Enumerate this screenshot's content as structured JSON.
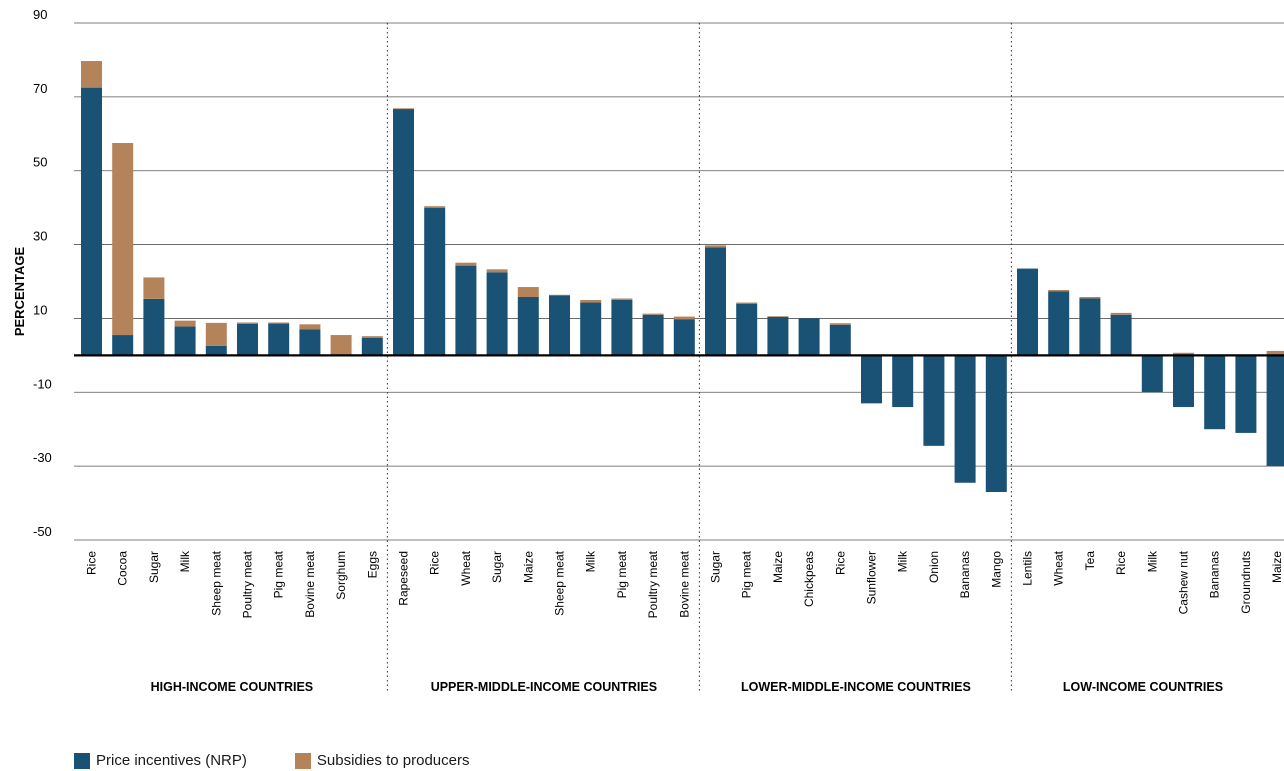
{
  "chart_data": {
    "type": "bar",
    "stacked": true,
    "ylabel": "PERCENTAGE",
    "ylim": [
      -50,
      90
    ],
    "yticks": [
      90,
      70,
      50,
      30,
      10,
      -10,
      -30,
      -50
    ],
    "colors": {
      "nrp": "#1a5276",
      "subsidy": "#b5835a"
    },
    "legend": [
      {
        "key": "nrp",
        "label": "Price incentives (NRP)"
      },
      {
        "key": "subsidy",
        "label": "Subsidies to producers"
      }
    ],
    "legend_position": "bottom-left",
    "groups": [
      {
        "label": "HIGH-INCOME COUNTRIES",
        "categories": [
          "Rice",
          "Cocoa",
          "Sugar",
          "Milk",
          "Sheep meat",
          "Poultry meat",
          "Pig meat",
          "Bovine meat",
          "Sorghum",
          "Eggs"
        ],
        "nrp": [
          72.5,
          5.5,
          15.3,
          7.8,
          2.6,
          8.5,
          8.6,
          7.0,
          0.0,
          4.7
        ],
        "subsidy": [
          7.2,
          52.0,
          5.8,
          1.6,
          6.2,
          0.4,
          0.3,
          1.4,
          5.5,
          0.5
        ]
      },
      {
        "label": "UPPER-MIDDLE-INCOME COUNTRIES",
        "categories": [
          "Rapeseed",
          "Rice",
          "Wheat",
          "Sugar",
          "Maize",
          "Sheep meat",
          "Milk",
          "Pig meat",
          "Poultry meat",
          "Bovine meat"
        ],
        "nrp": [
          66.7,
          39.9,
          24.3,
          22.5,
          15.8,
          16.2,
          14.3,
          15.0,
          11.0,
          9.8
        ],
        "subsidy": [
          0.2,
          0.5,
          0.8,
          0.8,
          2.7,
          0.2,
          0.7,
          0.4,
          0.3,
          0.7
        ]
      },
      {
        "label": "LOWER-MIDDLE-INCOME COUNTRIES",
        "categories": [
          "Sugar",
          "Pig meat",
          "Maize",
          "Chickpeas",
          "Rice",
          "Sunflower",
          "Milk",
          "Onion",
          "Bananas",
          "Mango"
        ],
        "nrp": [
          29.2,
          14.0,
          10.4,
          10.0,
          8.3,
          -13.0,
          -14.0,
          -24.5,
          -34.5,
          -37.0
        ],
        "subsidy": [
          0.6,
          0.3,
          0.2,
          0.0,
          0.4,
          0.0,
          0.0,
          0.0,
          0.0,
          0.0
        ]
      },
      {
        "label": "LOW-INCOME COUNTRIES",
        "categories": [
          "Lentils",
          "Wheat",
          "Tea",
          "Rice",
          "Milk",
          "Cashew nut",
          "Bananas",
          "Groundnuts",
          "Maize"
        ],
        "nrp": [
          23.5,
          17.3,
          15.4,
          11.0,
          -10.0,
          -14.0,
          -20.0,
          -21.0,
          -30.0
        ],
        "subsidy": [
          0.0,
          0.4,
          0.4,
          0.5,
          0.0,
          0.7,
          0.0,
          0.0,
          1.2
        ]
      }
    ]
  }
}
